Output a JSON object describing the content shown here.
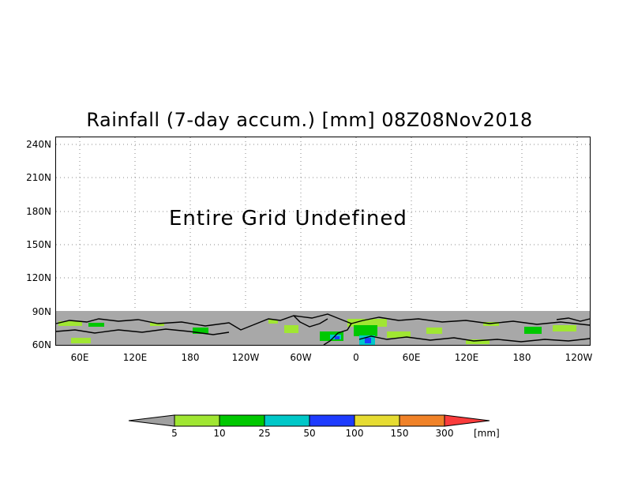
{
  "map": {
    "title": "Rainfall (7-day accum.) [mm] 08Z08Nov2018",
    "message": "Entire Grid Undefined",
    "lat_labels": [
      "240N",
      "210N",
      "180N",
      "150N",
      "120N",
      "90N",
      "60N"
    ],
    "lon_labels": [
      "60E",
      "120E",
      "180",
      "120W",
      "60W",
      "0",
      "60E",
      "120E",
      "180",
      "120W"
    ]
  },
  "colorbar": {
    "levels": [
      "5",
      "10",
      "25",
      "50",
      "100",
      "150",
      "300"
    ],
    "unit": "[mm]",
    "colors": [
      "#a0a0a0",
      "#a0e632",
      "#00c800",
      "#00c8c8",
      "#1e3cff",
      "#e6dc32",
      "#f08228",
      "#fa3c3c"
    ]
  },
  "colors": {
    "land_mask": "#a8a8a8",
    "light_green": "#a0e632",
    "green": "#00c800",
    "cyan": "#00c8c8",
    "blue": "#1e3cff"
  }
}
